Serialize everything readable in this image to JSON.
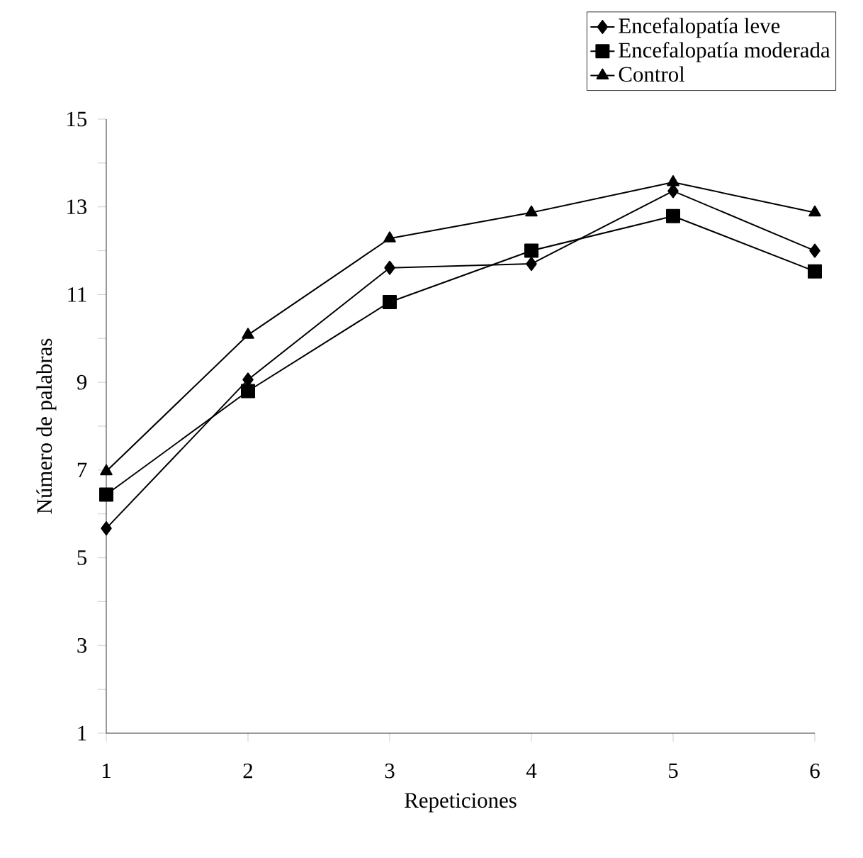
{
  "chart_data": {
    "type": "line",
    "xlabel": "Repeticiones",
    "ylabel": "Número de palabras",
    "x": [
      1,
      2,
      3,
      4,
      5,
      6
    ],
    "series": [
      {
        "name": "Encefalopatía leve",
        "color": "#000000",
        "marker": "diamond",
        "values": [
          5.67,
          9.06,
          11.61,
          11.7,
          13.36,
          12.0
        ]
      },
      {
        "name": "Encefalopatía moderada",
        "color": "#000000",
        "marker": "square",
        "values": [
          6.44,
          8.8,
          10.83,
          12.0,
          12.79,
          11.53
        ]
      },
      {
        "name": "Control",
        "color": "#000000",
        "marker": "triangle",
        "values": [
          6.97,
          10.08,
          12.28,
          12.87,
          13.56,
          12.87
        ]
      }
    ],
    "xlim": [
      1,
      6
    ],
    "xticks": [
      1,
      2,
      3,
      4,
      5,
      6
    ],
    "ylim": [
      1,
      15
    ],
    "yticks": [
      1,
      {
        "value": 2,
        "label": null
      },
      3,
      {
        "value": 4,
        "label": null
      },
      5,
      {
        "value": 6,
        "label": null
      },
      7,
      {
        "value": 8,
        "label": null
      },
      9,
      {
        "value": 10,
        "label": null
      },
      11,
      {
        "value": 12,
        "label": null
      },
      13,
      {
        "value": 14,
        "label": null
      },
      15
    ],
    "grid": false,
    "legend": "top right",
    "line_style": "solid"
  }
}
